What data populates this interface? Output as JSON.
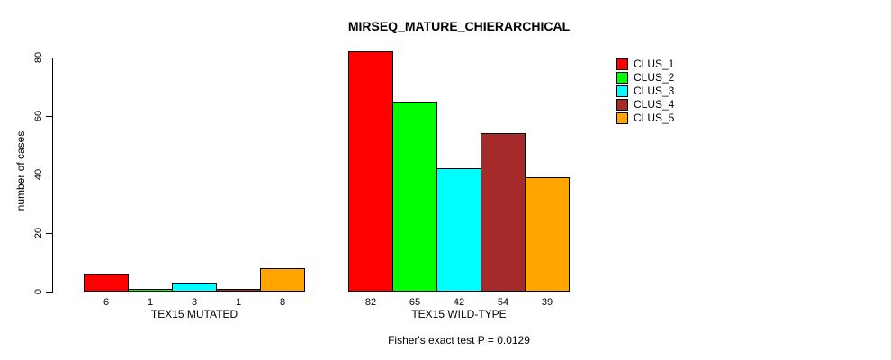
{
  "page": {
    "background_color": "#FFFFFF",
    "text_color": "#000000",
    "axis_color": "#000000"
  },
  "chart_data": {
    "type": "bar",
    "title": "MIRSEQ_MATURE_CHIERARCHICAL",
    "ylabel": "number of cases",
    "xlabel": "",
    "ylim": [
      0,
      80
    ],
    "yticks": [
      0,
      20,
      40,
      60,
      80
    ],
    "ytick_label_rotation_deg": -90,
    "grid": false,
    "categories": [
      "TEX15 MUTATED",
      "TEX15 WILD-TYPE"
    ],
    "series": [
      {
        "name": "CLUS_1",
        "color": "#FF0000",
        "values": [
          6,
          82
        ]
      },
      {
        "name": "CLUS_2",
        "color": "#00FF00",
        "values": [
          1,
          65
        ]
      },
      {
        "name": "CLUS_3",
        "color": "#00FFFF",
        "values": [
          3,
          42
        ]
      },
      {
        "name": "CLUS_4",
        "color": "#A52A2A",
        "values": [
          1,
          54
        ]
      },
      {
        "name": "CLUS_5",
        "color": "#FFA500",
        "values": [
          8,
          39
        ]
      }
    ],
    "bar_border_color": "#000000",
    "show_bar_value_labels": true,
    "legend_position": "top-right",
    "legend_entries": [
      "CLUS_1",
      "CLUS_2",
      "CLUS_3",
      "CLUS_4",
      "CLUS_5"
    ],
    "annotation": "Fisher's exact test P = 0.0129"
  }
}
